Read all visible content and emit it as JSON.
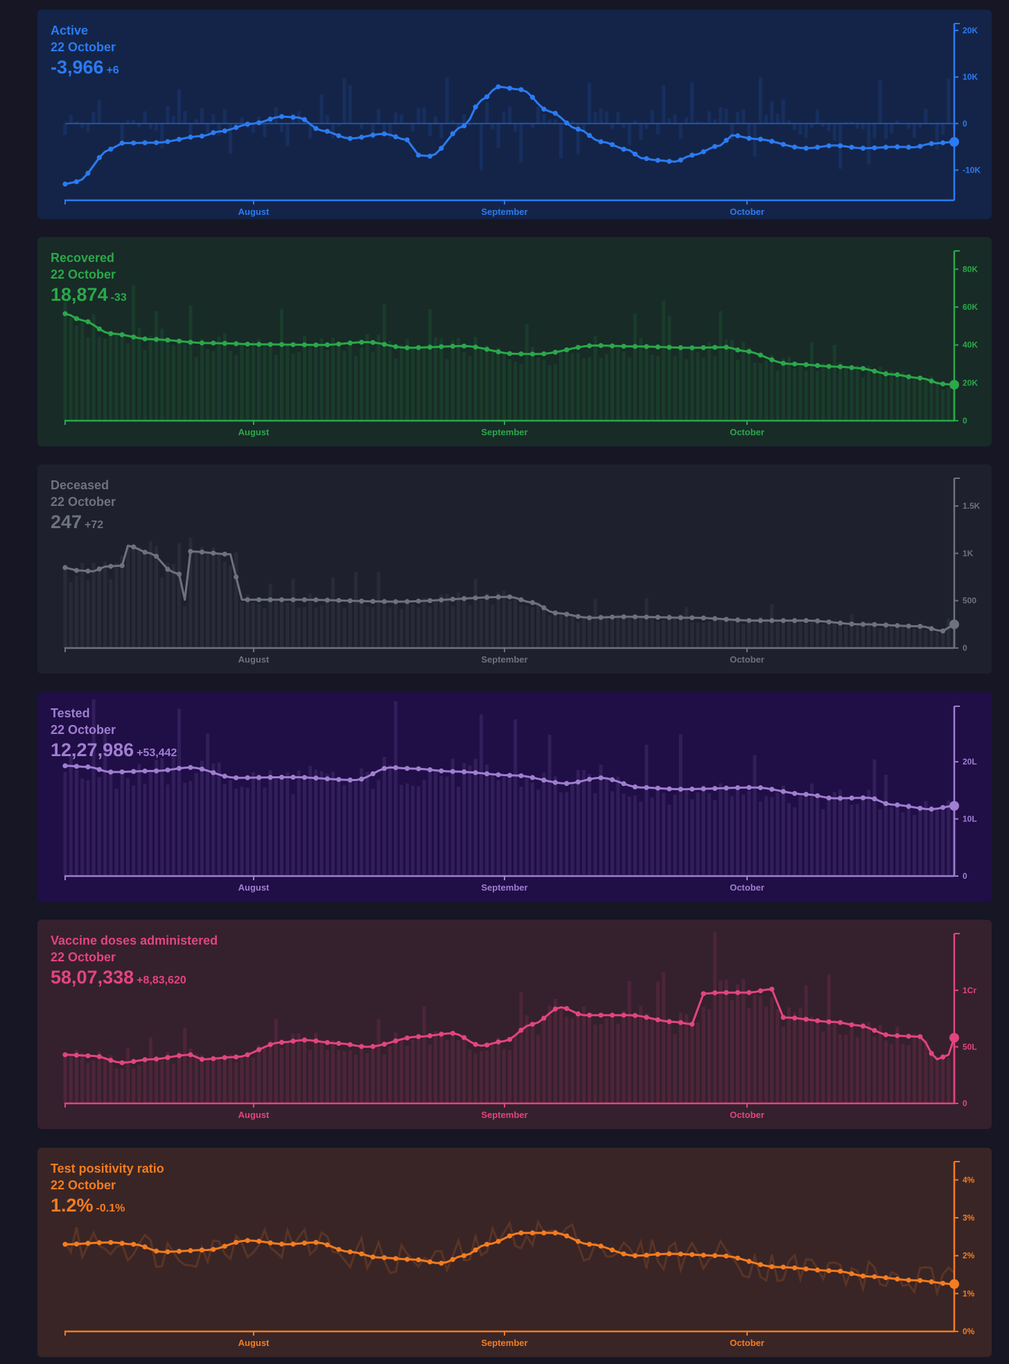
{
  "chart_data": [
    {
      "type": "line",
      "title": "Active",
      "date": "22 October",
      "value_label": "-3,966",
      "delta_label": "+6",
      "color": "#2b7bf2",
      "bg": "#142448",
      "x_labels": [
        "August",
        "September",
        "October"
      ],
      "y_ticks": [
        {
          "v": 20000,
          "label": "20K"
        },
        {
          "v": 10000,
          "label": "10K"
        },
        {
          "v": 0,
          "label": "0"
        },
        {
          "v": -10000,
          "label": "-10K"
        }
      ],
      "ylim": [
        -15000,
        20000
      ],
      "zero_line": true,
      "bar_mode": "signed",
      "bar_scale": 8,
      "anchors": [
        [
          0,
          -13000
        ],
        [
          2,
          -12500
        ],
        [
          8,
          -5500
        ],
        [
          10,
          -4200
        ],
        [
          16,
          -4100
        ],
        [
          24,
          -2700
        ],
        [
          27,
          -1700
        ],
        [
          33,
          0
        ],
        [
          38,
          1500
        ],
        [
          41,
          1300
        ],
        [
          45,
          -1500
        ],
        [
          50,
          -3200
        ],
        [
          56,
          -2200
        ],
        [
          60,
          -3500
        ],
        [
          62,
          -6800
        ],
        [
          64,
          -7000
        ],
        [
          70,
          -500
        ],
        [
          73,
          5000
        ],
        [
          76,
          7900
        ],
        [
          80,
          7300
        ],
        [
          85,
          2600
        ],
        [
          90,
          -1200
        ],
        [
          94,
          -3900
        ],
        [
          99,
          -5700
        ],
        [
          101,
          -7400
        ],
        [
          104,
          -7900
        ],
        [
          107,
          -8200
        ],
        [
          110,
          -6800
        ],
        [
          115,
          -4700
        ],
        [
          117,
          -2500
        ],
        [
          121,
          -3300
        ],
        [
          130,
          -5300
        ],
        [
          135,
          -4700
        ],
        [
          140,
          -5300
        ],
        [
          146,
          -5000
        ],
        [
          149,
          -5100
        ],
        [
          152,
          -4300
        ],
        [
          156,
          -3950
        ]
      ]
    },
    {
      "type": "line",
      "title": "Recovered",
      "date": "22 October",
      "value_label": "18,874",
      "delta_label": "-33",
      "color": "#2aa84a",
      "bg": "#182b27",
      "x_labels": [
        "August",
        "September",
        "October"
      ],
      "y_ticks": [
        {
          "v": 80000,
          "label": "80K"
        },
        {
          "v": 60000,
          "label": "60K"
        },
        {
          "v": 40000,
          "label": "40K"
        },
        {
          "v": 20000,
          "label": "20K"
        },
        {
          "v": 0,
          "label": "0"
        }
      ],
      "ylim": [
        0,
        86000
      ],
      "bar_mode": "base",
      "anchors": [
        [
          0,
          56500
        ],
        [
          3,
          53000
        ],
        [
          8,
          46000
        ],
        [
          15,
          43000
        ],
        [
          25,
          41000
        ],
        [
          35,
          40300
        ],
        [
          45,
          40000
        ],
        [
          53,
          41500
        ],
        [
          60,
          38500
        ],
        [
          70,
          39400
        ],
        [
          79,
          35300
        ],
        [
          83,
          35200
        ],
        [
          93,
          39700
        ],
        [
          100,
          39200
        ],
        [
          110,
          38500
        ],
        [
          116,
          38800
        ],
        [
          119,
          36800
        ],
        [
          127,
          30000
        ],
        [
          136,
          28500
        ],
        [
          139,
          27800
        ],
        [
          145,
          24500
        ],
        [
          150,
          22500
        ],
        [
          154,
          19400
        ],
        [
          156,
          19000
        ]
      ]
    },
    {
      "type": "line",
      "title": "Deceased",
      "date": "22 October",
      "value_label": "247",
      "delta_label": "+72",
      "color": "#6e7180",
      "bg": "#1f202d",
      "x_labels": [
        "August",
        "September",
        "October"
      ],
      "y_ticks": [
        {
          "v": 1500,
          "label": "1.5K"
        },
        {
          "v": 1000,
          "label": "1K"
        },
        {
          "v": 500,
          "label": "500"
        },
        {
          "v": 0,
          "label": "0"
        }
      ],
      "ylim": [
        0,
        1720
      ],
      "bar_mode": "base",
      "anchors": [
        [
          0,
          850
        ],
        [
          2,
          820
        ],
        [
          5,
          810
        ],
        [
          7,
          860
        ],
        [
          10,
          870
        ],
        [
          11,
          1080
        ],
        [
          15,
          1000
        ],
        [
          19,
          800
        ],
        [
          20,
          780
        ],
        [
          21,
          510
        ],
        [
          22,
          1020
        ],
        [
          29,
          990
        ],
        [
          31,
          510
        ],
        [
          41,
          510
        ],
        [
          58,
          490
        ],
        [
          78,
          540
        ],
        [
          82,
          480
        ],
        [
          86,
          370
        ],
        [
          92,
          320
        ],
        [
          98,
          330
        ],
        [
          110,
          320
        ],
        [
          121,
          290
        ],
        [
          130,
          290
        ],
        [
          140,
          250
        ],
        [
          150,
          230
        ],
        [
          154,
          180
        ],
        [
          156,
          250
        ]
      ]
    },
    {
      "type": "line",
      "title": "Tested",
      "date": "22 October",
      "value_label": "12,27,986",
      "delta_label": "+53,442",
      "color": "#a07ed0",
      "bg": "#200e47",
      "x_labels": [
        "August",
        "September",
        "October"
      ],
      "y_ticks": [
        {
          "v": 20,
          "label": "20L"
        },
        {
          "v": 10,
          "label": "10L"
        },
        {
          "v": 0,
          "label": "0"
        }
      ],
      "ylim": [
        0,
        28500
      ],
      "y_scale": 1000,
      "bar_mode": "base",
      "anchors": [
        [
          0,
          19300
        ],
        [
          4,
          19100
        ],
        [
          8,
          18200
        ],
        [
          16,
          18400
        ],
        [
          22,
          19000
        ],
        [
          30,
          17200
        ],
        [
          40,
          17300
        ],
        [
          51,
          16800
        ],
        [
          57,
          19000
        ],
        [
          61,
          18800
        ],
        [
          68,
          18300
        ],
        [
          79,
          17600
        ],
        [
          88,
          16200
        ],
        [
          94,
          17200
        ],
        [
          101,
          15500
        ],
        [
          108,
          15200
        ],
        [
          121,
          15500
        ],
        [
          130,
          14300
        ],
        [
          135,
          13600
        ],
        [
          141,
          13700
        ],
        [
          145,
          12500
        ],
        [
          152,
          11700
        ],
        [
          156,
          12280
        ]
      ]
    },
    {
      "type": "line",
      "title": "Vaccine doses administered",
      "date": "22 October",
      "value_label": "58,07,338",
      "delta_label": "+8,83,620",
      "color": "#e2457c",
      "bg": "#35202e",
      "x_labels": [
        "August",
        "September",
        "October"
      ],
      "y_ticks": [
        {
          "v": 1,
          "label": "1Cr"
        },
        {
          "v": 50,
          "label": "50L"
        },
        {
          "v": 0,
          "label": "0"
        }
      ],
      "ylim": [
        0,
        14400000
      ],
      "tick_values": [
        10000000,
        5000000,
        0
      ],
      "bar_mode": "base",
      "anchors": [
        [
          0,
          4300000
        ],
        [
          5,
          4200000
        ],
        [
          10,
          3600000
        ],
        [
          15,
          3900000
        ],
        [
          22,
          4300000
        ],
        [
          24,
          3900000
        ],
        [
          30,
          4100000
        ],
        [
          38,
          5400000
        ],
        [
          42,
          5600000
        ],
        [
          48,
          5300000
        ],
        [
          53,
          5000000
        ],
        [
          62,
          5900000
        ],
        [
          68,
          6200000
        ],
        [
          73,
          5100000
        ],
        [
          77,
          5500000
        ],
        [
          82,
          7000000
        ],
        [
          87,
          8500000
        ],
        [
          91,
          7800000
        ],
        [
          99,
          7800000
        ],
        [
          107,
          7200000
        ],
        [
          110,
          7000000
        ],
        [
          112,
          9700000
        ],
        [
          115,
          9800000
        ],
        [
          120,
          9800000
        ],
        [
          124,
          10100000
        ],
        [
          126,
          7600000
        ],
        [
          135,
          7200000
        ],
        [
          139,
          6900000
        ],
        [
          145,
          6000000
        ],
        [
          150,
          5900000
        ],
        [
          153,
          3900000
        ],
        [
          155,
          4300000
        ],
        [
          156,
          5800000
        ]
      ]
    },
    {
      "type": "line",
      "title": "Test positivity ratio",
      "date": "22 October",
      "value_label": "1.2%",
      "delta_label": "-0.1%",
      "color": "#f57c1f",
      "bg": "#392526",
      "x_labels": [
        "August",
        "September",
        "October"
      ],
      "y_ticks": [
        {
          "v": 4,
          "label": "4%"
        },
        {
          "v": 3,
          "label": "3%"
        },
        {
          "v": 2,
          "label": "2%"
        },
        {
          "v": 1,
          "label": "1%"
        },
        {
          "v": 0,
          "label": "0%"
        }
      ],
      "ylim": [
        0,
        4.3
      ],
      "bar_mode": "noise",
      "anchors": [
        [
          0,
          2.3
        ],
        [
          8,
          2.35
        ],
        [
          12,
          2.3
        ],
        [
          17,
          2.1
        ],
        [
          25,
          2.15
        ],
        [
          32,
          2.4
        ],
        [
          39,
          2.3
        ],
        [
          44,
          2.35
        ],
        [
          50,
          2.1
        ],
        [
          55,
          1.95
        ],
        [
          61,
          1.9
        ],
        [
          66,
          1.8
        ],
        [
          70,
          2.0
        ],
        [
          74,
          2.3
        ],
        [
          80,
          2.6
        ],
        [
          86,
          2.6
        ],
        [
          92,
          2.3
        ],
        [
          100,
          2.0
        ],
        [
          106,
          2.05
        ],
        [
          115,
          2.0
        ],
        [
          125,
          1.7
        ],
        [
          135,
          1.6
        ],
        [
          141,
          1.45
        ],
        [
          149,
          1.35
        ],
        [
          156,
          1.25
        ]
      ]
    }
  ]
}
